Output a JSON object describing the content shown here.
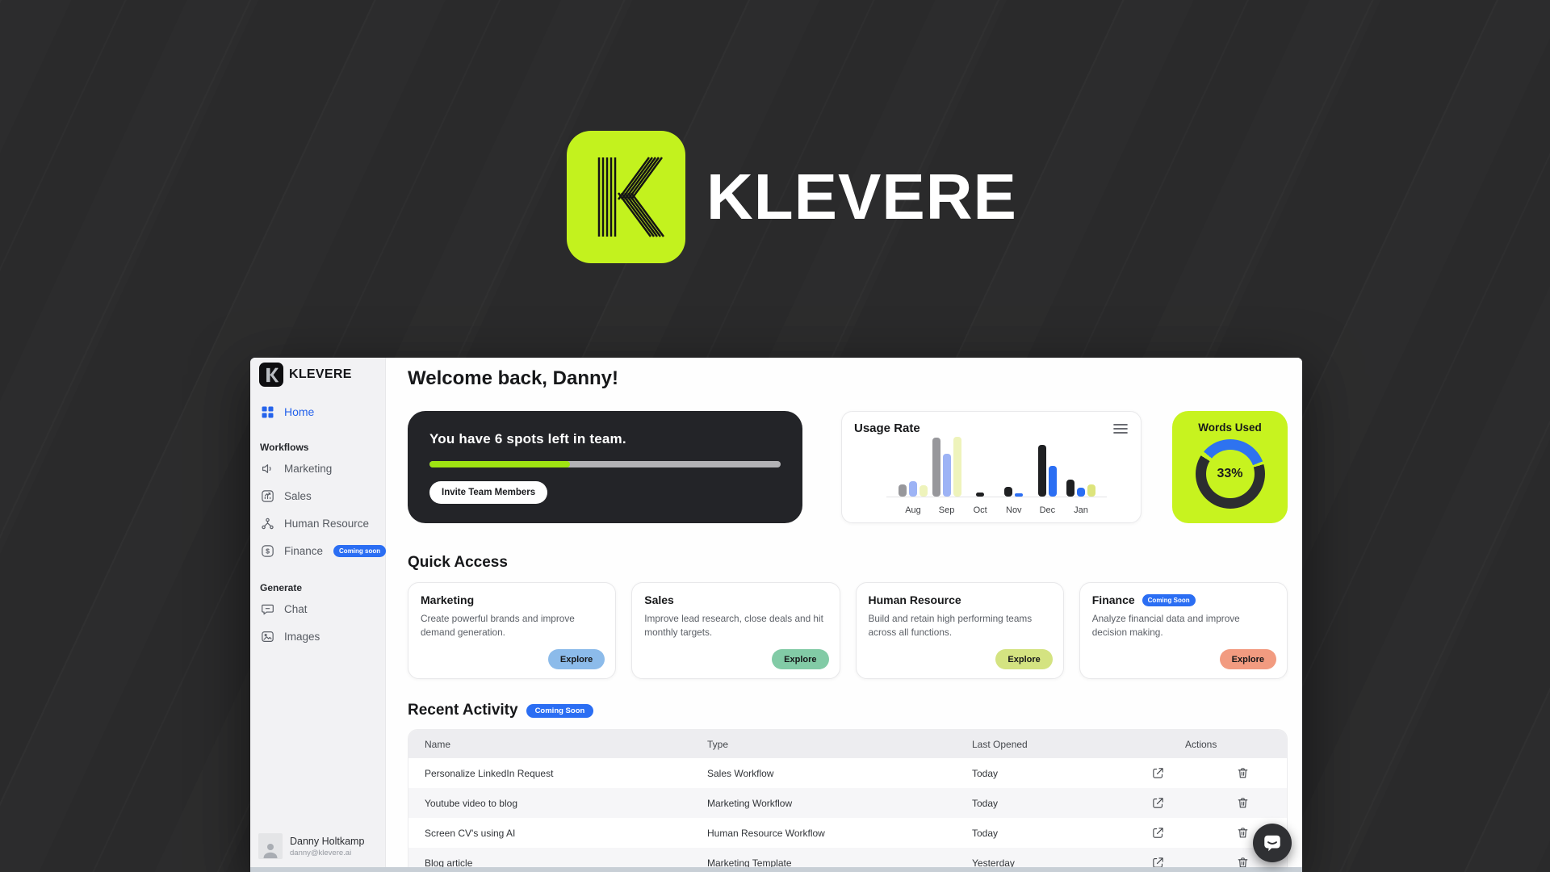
{
  "colors": {
    "lime": "#c7f31f",
    "lime_badge": "#c3f21e",
    "progress_lime": "#9fe312",
    "accent_blue": "#2b6ef3",
    "dark_card": "#232428",
    "page_bg": "#2a2a2b"
  },
  "brand": {
    "name": "KLEVERE"
  },
  "sidebar": {
    "logo_text": "KLEVERE",
    "home_label": "Home",
    "sections": [
      {
        "label": "Workflows",
        "items": [
          {
            "label": "Marketing"
          },
          {
            "label": "Sales"
          },
          {
            "label": "Human Resource"
          },
          {
            "label": "Finance",
            "badge": "Coming soon"
          }
        ]
      },
      {
        "label": "Generate",
        "items": [
          {
            "label": "Chat"
          },
          {
            "label": "Images"
          }
        ]
      }
    ],
    "user": {
      "name": "Danny Holtkamp",
      "email": "danny@klevere.ai"
    }
  },
  "main": {
    "welcome_heading": "Welcome back, Danny!",
    "team_card": {
      "message": "You have 6 spots left in team.",
      "progress_percent": 40,
      "button_label": "Invite Team Members"
    },
    "usage_card": {
      "title": "Usage Rate"
    },
    "words_card": {
      "title": "Words Used",
      "center_label": "33%"
    },
    "quick_access": {
      "heading": "Quick Access",
      "cards": [
        {
          "title": "Marketing",
          "description": "Create powerful brands and improve demand generation.",
          "button_label": "Explore",
          "button_color": "#8cbbea"
        },
        {
          "title": "Sales",
          "description": "Improve lead research, close deals and hit monthly targets.",
          "button_label": "Explore",
          "button_color": "#82cba6"
        },
        {
          "title": "Human Resource",
          "description": "Build and retain high performing teams across all functions.",
          "button_label": "Explore",
          "button_color": "#d4e381"
        },
        {
          "title": "Finance",
          "badge": "Coming Soon",
          "description": "Analyze financial data and improve decision making.",
          "button_label": "Explore",
          "button_color": "#f29b80"
        }
      ]
    },
    "recent_activity": {
      "heading": "Recent Activity",
      "badge": "Coming Soon",
      "columns": [
        "Name",
        "Type",
        "Last Opened",
        "Actions"
      ],
      "rows": [
        {
          "name": "Personalize LinkedIn Request",
          "type": "Sales Workflow",
          "last_opened": "Today"
        },
        {
          "name": "Youtube video to blog",
          "type": "Marketing Workflow",
          "last_opened": "Today"
        },
        {
          "name": "Screen CV's using AI",
          "type": "Human Resource Workflow",
          "last_opened": "Today"
        },
        {
          "name": "Blog article",
          "type": "Marketing Template",
          "last_opened": "Yesterday"
        }
      ]
    }
  },
  "chart_data": [
    {
      "type": "bar",
      "title": "Usage Rate",
      "categories": [
        "Aug",
        "Sep",
        "Oct",
        "Nov",
        "Dec",
        "Jan"
      ],
      "series": [
        {
          "name": "series-1",
          "values": [
            20,
            99,
            7,
            16,
            86,
            28
          ],
          "colors": [
            "#97979b",
            "#97979b",
            "#1f2022",
            "#1f2022",
            "#1f2022",
            "#1f2022"
          ]
        },
        {
          "name": "series-2",
          "values": [
            26,
            72,
            0,
            5,
            51,
            15
          ],
          "colors": [
            "#9db3f5",
            "#9db3f5",
            "#2b6ef3",
            "#2b6ef3",
            "#2b6ef3",
            "#2b6ef3"
          ]
        },
        {
          "name": "series-3",
          "values": [
            19,
            100,
            0,
            0,
            0,
            20
          ],
          "colors": [
            "#eef3bb",
            "#eef3bb",
            "#dde47c",
            "#dde47c",
            "#dde47c",
            "#dde47c"
          ]
        }
      ],
      "xlabel": "",
      "ylabel": "",
      "ylim": [
        0,
        100
      ],
      "grid": false,
      "legend": false
    },
    {
      "type": "donut",
      "title": "Words Used",
      "value_percent": 33,
      "center_label": "33%",
      "segment_colors": {
        "used": "#2e73f0",
        "remaining": "#2c2d30"
      }
    }
  ]
}
